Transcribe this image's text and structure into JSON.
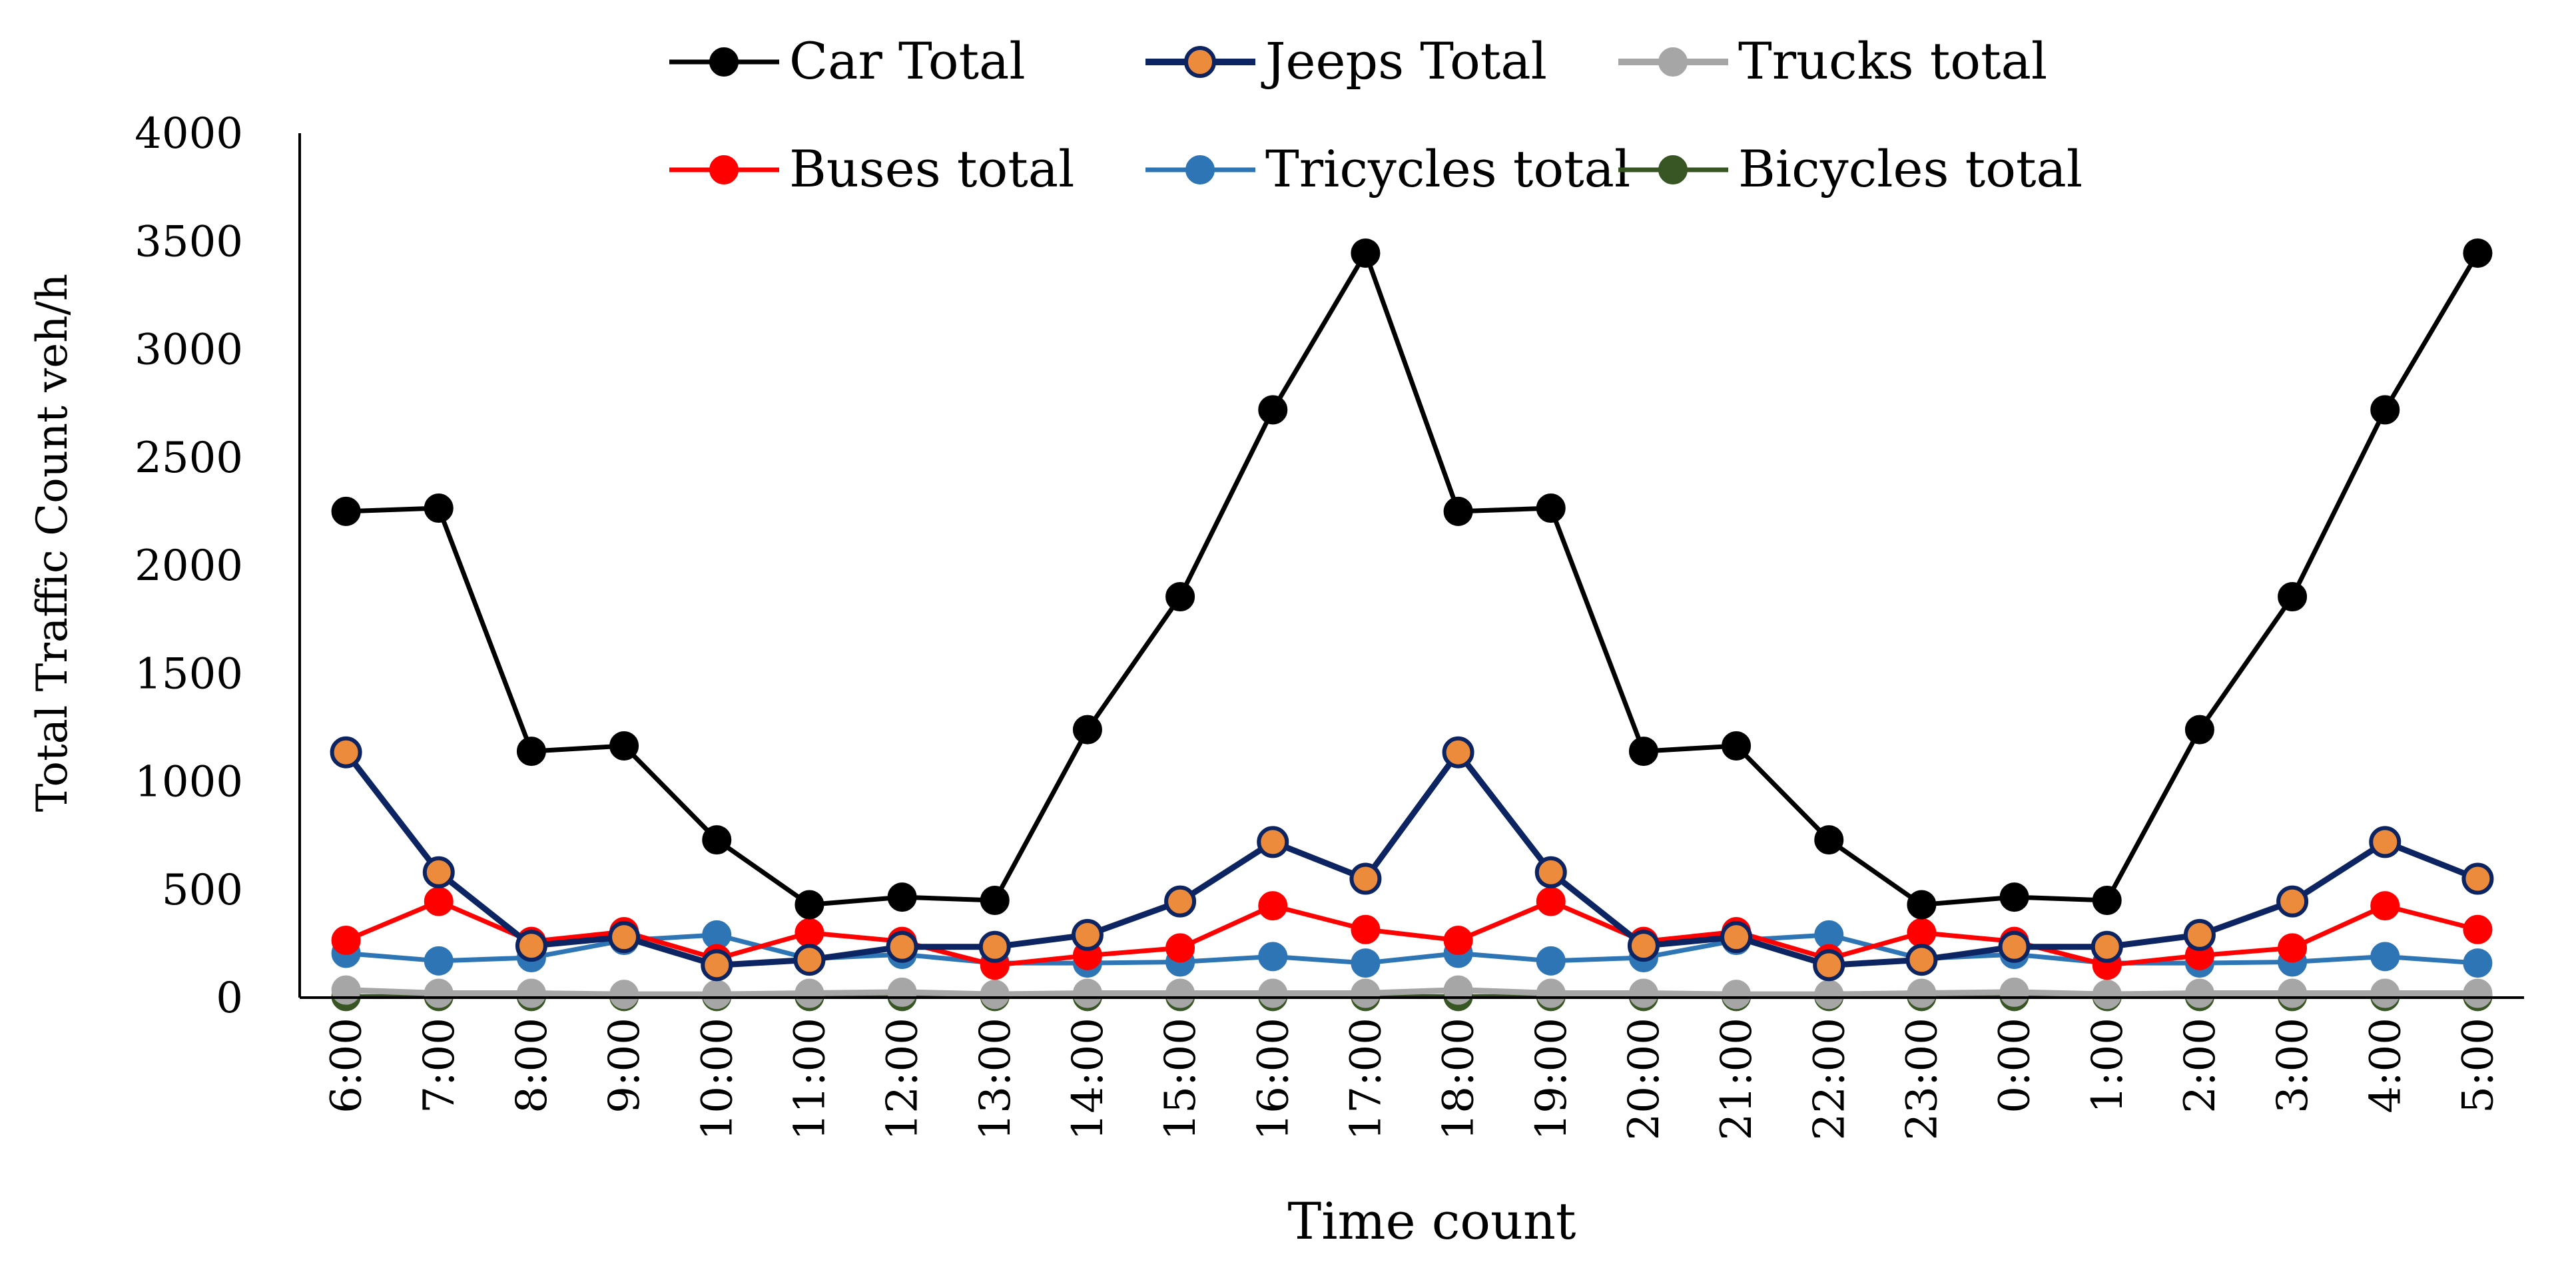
{
  "chart_data": {
    "type": "line",
    "title": "",
    "xlabel": "Time count",
    "ylabel": "Total Traffic Count veh/h",
    "ylim": [
      0,
      4000
    ],
    "yticks": [
      0,
      500,
      1000,
      1500,
      2000,
      2500,
      3000,
      3500,
      4000
    ],
    "grid": false,
    "legend_position": "top",
    "categories": [
      "6:00",
      "7:00",
      "8:00",
      "9:00",
      "10:00",
      "11:00",
      "12:00",
      "13:00",
      "14:00",
      "15:00",
      "16:00",
      "17:00",
      "18:00",
      "19:00",
      "20:00",
      "21:00",
      "22:00",
      "23:00",
      "0:00",
      "1:00",
      "2:00",
      "3:00",
      "4:00",
      "5:00"
    ],
    "series": [
      {
        "name": "Car Total",
        "line_color": "#000000",
        "marker_fill": "#000000",
        "marker_stroke": "#000000",
        "values": [
          2250,
          2265,
          1140,
          1165,
          730,
          430,
          465,
          450,
          1240,
          1855,
          2720,
          3445,
          2250,
          2265,
          1140,
          1165,
          730,
          430,
          465,
          450,
          1240,
          1855,
          2720,
          3445
        ]
      },
      {
        "name": "Jeeps Total",
        "line_color": "#0c2461",
        "marker_fill": "#ed8b3c",
        "marker_stroke": "#0c2461",
        "values": [
          1135,
          580,
          240,
          280,
          150,
          175,
          235,
          235,
          290,
          445,
          720,
          550,
          1135,
          580,
          240,
          280,
          150,
          175,
          235,
          235,
          290,
          445,
          720,
          550
        ]
      },
      {
        "name": "Trucks total",
        "line_color": "#a6a6a6",
        "marker_fill": "#a6a6a6",
        "marker_stroke": "#a6a6a6",
        "values": [
          35,
          20,
          20,
          15,
          15,
          20,
          25,
          15,
          20,
          20,
          20,
          20,
          35,
          20,
          20,
          15,
          15,
          20,
          25,
          15,
          20,
          20,
          20,
          20
        ]
      },
      {
        "name": "Buses total",
        "line_color": "#ff0000",
        "marker_fill": "#ff0000",
        "marker_stroke": "#ff0000",
        "values": [
          265,
          445,
          260,
          305,
          180,
          300,
          260,
          150,
          195,
          230,
          425,
          315,
          265,
          445,
          260,
          305,
          180,
          300,
          260,
          150,
          195,
          230,
          425,
          315
        ]
      },
      {
        "name": "Tricycles total",
        "line_color": "#2e75b6",
        "marker_fill": "#2e75b6",
        "marker_stroke": "#2e75b6",
        "values": [
          205,
          170,
          185,
          265,
          290,
          180,
          200,
          160,
          160,
          165,
          190,
          160,
          205,
          170,
          185,
          265,
          290,
          180,
          200,
          160,
          160,
          165,
          190,
          160
        ]
      },
      {
        "name": "Bicycles total",
        "line_color": "#375623",
        "marker_fill": "#375623",
        "marker_stroke": "#375623",
        "values": [
          5,
          5,
          5,
          5,
          5,
          5,
          5,
          5,
          5,
          5,
          5,
          5,
          5,
          5,
          5,
          5,
          5,
          5,
          5,
          5,
          5,
          5,
          5,
          5
        ]
      }
    ]
  }
}
